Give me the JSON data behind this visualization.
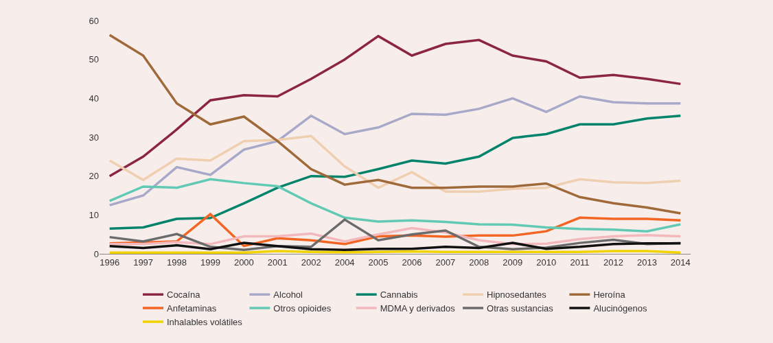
{
  "chart_data": {
    "type": "line",
    "categories": [
      "1996",
      "1997",
      "1998",
      "1999",
      "2000",
      "2001",
      "2002",
      "2004",
      "2005",
      "2006",
      "2007",
      "2008",
      "2009",
      "2010",
      "2011",
      "2012",
      "2013",
      "2014"
    ],
    "ylim": [
      0,
      60
    ],
    "yticks": [
      0,
      10,
      20,
      30,
      40,
      50,
      60
    ],
    "grid": false,
    "legend": "bottom",
    "marker": "none",
    "line_style": "solid",
    "series": [
      {
        "name": "Cocaína",
        "color": "#8b2540",
        "values": [
          20,
          25,
          32,
          39.5,
          40.8,
          40.5,
          45,
          50,
          56,
          51,
          54,
          55,
          51,
          49.5,
          45.3,
          46,
          45,
          43.7
        ]
      },
      {
        "name": "Alcohol",
        "color": "#a8a8c8",
        "values": [
          12.5,
          15,
          22.3,
          20.3,
          26.8,
          29,
          35.5,
          30.8,
          32.5,
          36,
          35.8,
          37.3,
          40,
          36.5,
          40.5,
          39,
          38.7,
          38.7
        ]
      },
      {
        "name": "Cannabis",
        "color": "#00836b",
        "values": [
          6.5,
          6.8,
          9,
          9.2,
          13,
          17,
          20,
          19.8,
          21.8,
          24,
          23.2,
          25,
          29.8,
          30.8,
          33.3,
          33.3,
          34.8,
          35.5
        ]
      },
      {
        "name": "Hipnosedantes",
        "color": "#f0cfb0",
        "values": [
          24,
          19,
          24.5,
          24,
          29,
          29.3,
          30.3,
          22.5,
          17,
          21,
          16,
          16,
          16.7,
          17,
          19.2,
          18.4,
          18.2,
          18.8
        ]
      },
      {
        "name": "Heroína",
        "color": "#a0693a",
        "values": [
          56.3,
          51,
          38.7,
          33.3,
          35.3,
          29,
          21.8,
          17.8,
          19,
          17,
          17,
          17.3,
          17.3,
          18.1,
          14.6,
          13,
          11.9,
          10.4
        ]
      },
      {
        "name": "Anfetaminas",
        "color": "#f26522",
        "values": [
          2.7,
          2.9,
          3.2,
          10.2,
          2,
          4,
          3.5,
          2.5,
          4.5,
          4.7,
          4.4,
          4.7,
          4.7,
          5.8,
          9.3,
          9,
          9,
          8.6
        ]
      },
      {
        "name": "Otros opioides",
        "color": "#62c9b4",
        "values": [
          13.6,
          17.3,
          17,
          19.2,
          18.2,
          17.4,
          13,
          9.3,
          8.3,
          8.6,
          8.2,
          7.6,
          7.5,
          6.8,
          6.4,
          6.2,
          5.8,
          7.6
        ]
      },
      {
        "name": "MDMA y derivados",
        "color": "#f2b8bc",
        "values": [
          2.5,
          2.5,
          3,
          2.5,
          4.5,
          4.5,
          5.2,
          3.2,
          5,
          6.6,
          5.5,
          3.5,
          2.5,
          2.6,
          3.8,
          4.5,
          4.8,
          4.5
        ]
      },
      {
        "name": "Otras sustancias",
        "color": "#6b6b6b",
        "values": [
          4.3,
          3.2,
          5.1,
          1.8,
          1,
          2,
          1.8,
          8.8,
          3.5,
          5,
          6,
          1.8,
          1.2,
          1.6,
          2.8,
          3.6,
          2.5,
          2.8
        ]
      },
      {
        "name": "Alucinógenos",
        "color": "#111111",
        "values": [
          2,
          1.5,
          2.2,
          1.2,
          2.8,
          2,
          1.2,
          1,
          1.3,
          1.3,
          1.8,
          1.5,
          2.8,
          1.3,
          1.8,
          2.5,
          2.7,
          2.7
        ]
      },
      {
        "name": "Inhalables volátiles",
        "color": "#f2d300",
        "values": [
          0.3,
          0.3,
          0.3,
          0.3,
          0.3,
          0.7,
          0.5,
          0.4,
          0.5,
          0.6,
          0.5,
          0.5,
          0.5,
          0.5,
          0.5,
          0.7,
          0.7,
          0.3
        ]
      }
    ]
  }
}
